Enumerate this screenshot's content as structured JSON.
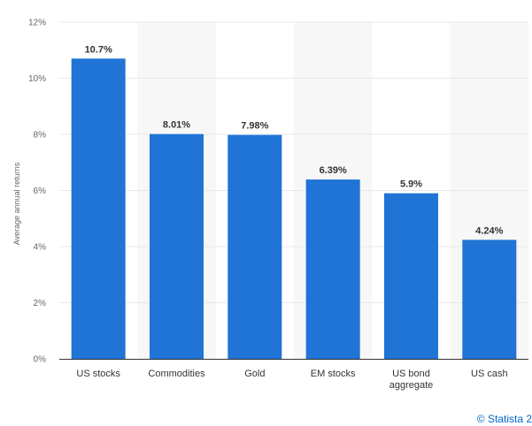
{
  "chart_data": {
    "type": "bar",
    "categories": [
      "US stocks",
      "Commodities",
      "Gold",
      "EM stocks",
      "US bond aggregate",
      "US cash"
    ],
    "category_lines": [
      [
        "US stocks"
      ],
      [
        "Commodities"
      ],
      [
        "Gold"
      ],
      [
        "EM stocks"
      ],
      [
        "US bond",
        "aggregate"
      ],
      [
        "US cash"
      ]
    ],
    "values": [
      10.7,
      8.01,
      7.98,
      6.39,
      5.9,
      4.24
    ],
    "value_labels": [
      "10.7%",
      "8.01%",
      "7.98%",
      "6.39%",
      "5.9%",
      "4.24%"
    ],
    "ylabel": "Average annual returns",
    "ylim": [
      0,
      12
    ],
    "yticks": [
      0,
      2,
      4,
      6,
      8,
      10,
      12
    ],
    "ytick_labels": [
      "0%",
      "2%",
      "4%",
      "6%",
      "8%",
      "10%",
      "12%"
    ],
    "grid": true,
    "alternating_column_shading": true,
    "bar_color": "#1f74d6",
    "shade_color": "#f7f7f7",
    "grid_color": "#e8e8e8"
  },
  "credit": "© Statista 2"
}
